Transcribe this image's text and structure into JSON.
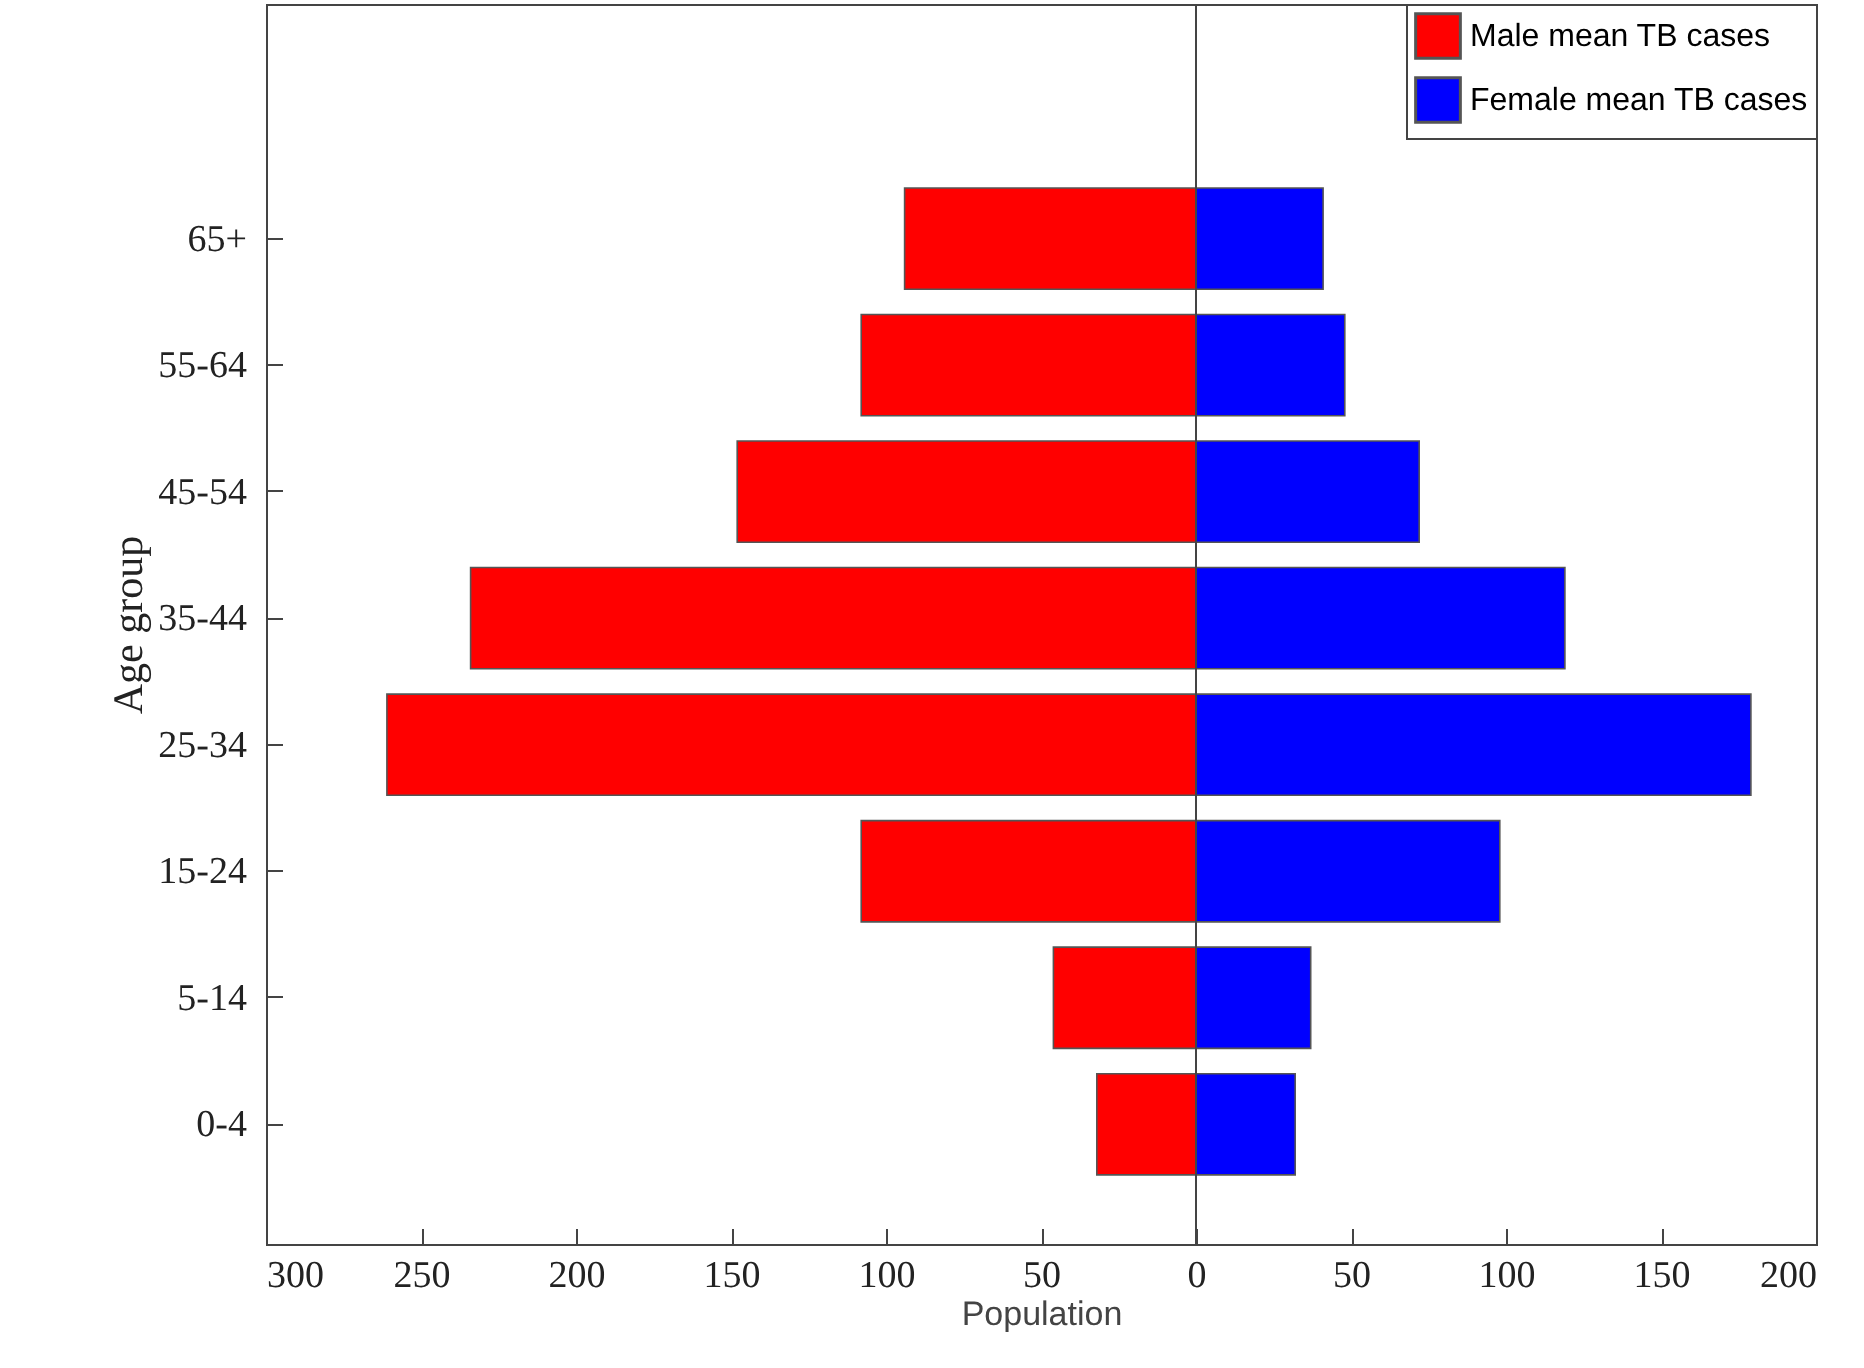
{
  "chart_data": {
    "type": "bar",
    "orientation": "horizontal",
    "categories": [
      "65+",
      "55-64",
      "45-54",
      "35-44",
      "25-34",
      "15-24",
      "5-14",
      "0-4"
    ],
    "series": [
      {
        "name": "Male mean TB cases",
        "color": "#ff0000",
        "values": [
          -94,
          -108,
          -148,
          -234,
          -261,
          -108,
          -46,
          -32
        ]
      },
      {
        "name": "Female mean TB cases",
        "color": "#0000ff",
        "values": [
          41,
          48,
          72,
          119,
          179,
          98,
          37,
          32
        ]
      }
    ],
    "xlim": [
      -300,
      200
    ],
    "xticks": [
      {
        "value": -300,
        "label": "300"
      },
      {
        "value": -250,
        "label": "250"
      },
      {
        "value": -200,
        "label": "200"
      },
      {
        "value": -150,
        "label": "150"
      },
      {
        "value": -100,
        "label": "100"
      },
      {
        "value": -50,
        "label": "50"
      },
      0,
      50,
      100,
      150,
      200
    ],
    "xlabel": "Population",
    "ylabel": "Age group",
    "ref_lines": [
      {
        "axis": "x",
        "value": 0
      }
    ],
    "legend": "top right",
    "grid": false,
    "stacked": true
  }
}
